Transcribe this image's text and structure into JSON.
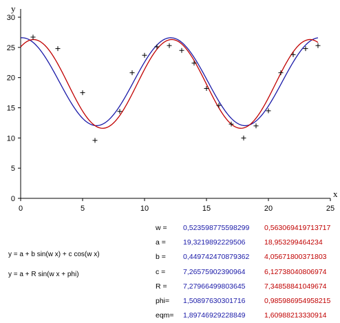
{
  "chart_data": {
    "type": "scatter",
    "xlabel": "x",
    "ylabel": "y",
    "xlim": [
      0,
      25
    ],
    "ylim": [
      0,
      30
    ],
    "xticks": [
      "0",
      "5",
      "10",
      "15",
      "20",
      "25"
    ],
    "yticks": [
      "0",
      "5",
      "10",
      "15",
      "20",
      "25",
      "30"
    ],
    "series": [
      {
        "mode": "markers",
        "marker": "plus",
        "color": "#000000",
        "x": [
          1,
          3,
          5,
          6,
          8,
          9,
          10,
          11,
          12,
          13,
          14,
          15,
          16,
          17,
          18,
          19,
          20,
          21,
          22,
          23,
          24
        ],
        "y": [
          26.7,
          24.8,
          17.5,
          9.6,
          14.4,
          20.8,
          23.7,
          25.1,
          25.3,
          24.5,
          22.4,
          18.2,
          15.4,
          12.3,
          10.0,
          12.0,
          14.5,
          20.8,
          23.8,
          24.8,
          25.3
        ]
      },
      {
        "mode": "line",
        "color": "#1a1aa8",
        "model": "a + b sin(w x) + c cos(w x)",
        "params": {
          "w": 0.523598775598299,
          "a": 19.3219892229506,
          "b": 0.449742470879362,
          "c": 7.26575902390964
        }
      },
      {
        "mode": "line",
        "color": "#c00000",
        "model": "a + b sin(w x) + c cos(w x)",
        "params": {
          "w": 0.563069419713717,
          "a": 18.953299464234,
          "b": 4.05671800371803,
          "c": 6.12738040806974
        }
      }
    ]
  },
  "formulas": [
    "y = a + b sin(w x) + c cos(w x)",
    "y = a + R sin(w x + phi)"
  ],
  "params_table": [
    {
      "name": "w =",
      "v1": "0,523598775598299",
      "v2": "0,563069419713717"
    },
    {
      "name": "a =",
      "v1": "19,3219892229506",
      "v2": "18,953299464234"
    },
    {
      "name": "b =",
      "v1": "0,449742470879362",
      "v2": "4,05671800371803"
    },
    {
      "name": "c =",
      "v1": "7,26575902390964",
      "v2": "6,12738040806974"
    },
    {
      "name": "R =",
      "v1": "7,27966499803645",
      "v2": "7,34858841049674"
    },
    {
      "name": "phi=",
      "v1": "1,50897630301716",
      "v2": "0,985986954958215"
    },
    {
      "name": "eqm=",
      "v1": "1,89746929228849",
      "v2": "1,60988213330914"
    }
  ]
}
